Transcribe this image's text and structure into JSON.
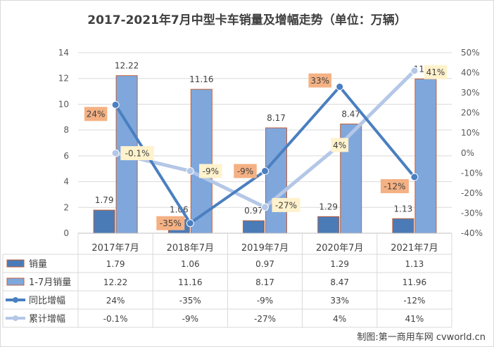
{
  "colors": {
    "sales_bar": "#4a7bb7",
    "cumulative_bar": "#7fa7dc",
    "bar_border": "#c0603a",
    "yoy_line": "#4a7fc0",
    "cum_line": "#b4c7e7",
    "yoy_label_bg": "#f4b183",
    "cum_label_bg": "#fff2cc",
    "grid": "#d9d9d9"
  },
  "chart_data": {
    "type": "bar",
    "title": "2017-2021年7月中型卡车销量及增幅走势（单位：万辆）",
    "categories": [
      "2017年7月",
      "2018年7月",
      "2019年7月",
      "2020年7月",
      "2021年7月"
    ],
    "series": [
      {
        "name": "销量",
        "kind": "bar",
        "axis": "left",
        "values": [
          1.79,
          1.06,
          0.97,
          1.29,
          1.13
        ],
        "labels": [
          "1.79",
          "1.06",
          "0.97",
          "1.29",
          "1.13"
        ]
      },
      {
        "name": "1-7月销量",
        "kind": "bar",
        "axis": "left",
        "values": [
          12.22,
          11.16,
          8.17,
          8.47,
          11.96
        ],
        "labels": [
          "12.22",
          "11.16",
          "8.17",
          "8.47",
          "11.96"
        ]
      },
      {
        "name": "同比增幅",
        "kind": "line",
        "axis": "right",
        "values": [
          24,
          -35,
          -9,
          33,
          -12
        ],
        "labels": [
          "24%",
          "-35%",
          "-9%",
          "33%",
          "-12%"
        ]
      },
      {
        "name": "累计增幅",
        "kind": "line",
        "axis": "right",
        "values": [
          -0.1,
          -9,
          -27,
          4,
          41
        ],
        "labels": [
          "-0.1%",
          "-9%",
          "-27%",
          "4%",
          "41%"
        ]
      }
    ],
    "ylim_left": [
      0,
      14
    ],
    "yticks_left": [
      "0",
      "2",
      "4",
      "6",
      "8",
      "10",
      "12",
      "14"
    ],
    "ylim_right": [
      -40,
      50
    ],
    "yticks_right": [
      "-40%",
      "-30%",
      "-20%",
      "-10%",
      "0%",
      "10%",
      "20%",
      "30%",
      "40%",
      "50%"
    ],
    "grid": true,
    "legend": "data-table"
  },
  "credit": "制图:第一商用车网 cvworld.cn"
}
